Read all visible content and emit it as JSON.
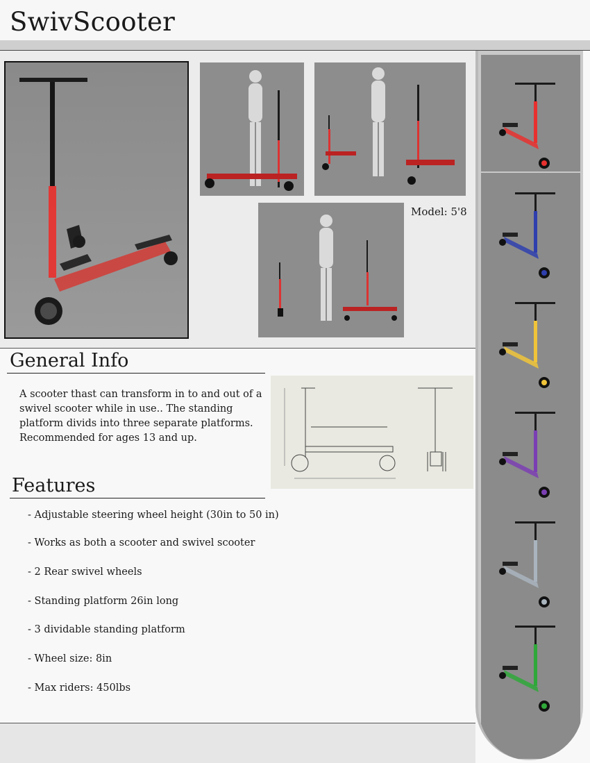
{
  "header": {
    "title": "SwivScooter"
  },
  "gallery": {
    "model_label": "Model: 5'8"
  },
  "general_info": {
    "heading": "General Info",
    "text": "A scooter thast can transform in to and out of a swivel scooter while in use.. The standing platform divids into three separate platforms. Recommended for ages 13 and up."
  },
  "features": {
    "heading": "Features",
    "items": [
      "- Adjustable steering wheel height (30in to 50 in)",
      "- Works as both a scooter and swivel scooter",
      "- 2 Rear swivel wheels",
      "- Standing platform 26in long",
      "- 3 dividable standing platform",
      "- Wheel size: 8in",
      "- Max riders: 450lbs"
    ]
  },
  "colors": {
    "main_render_stem": "#e8312f",
    "variants": [
      "#e8312f",
      "#2f3fae",
      "#f0c43a",
      "#7b3fb3",
      "#a9b4be",
      "#2fa83a"
    ]
  }
}
